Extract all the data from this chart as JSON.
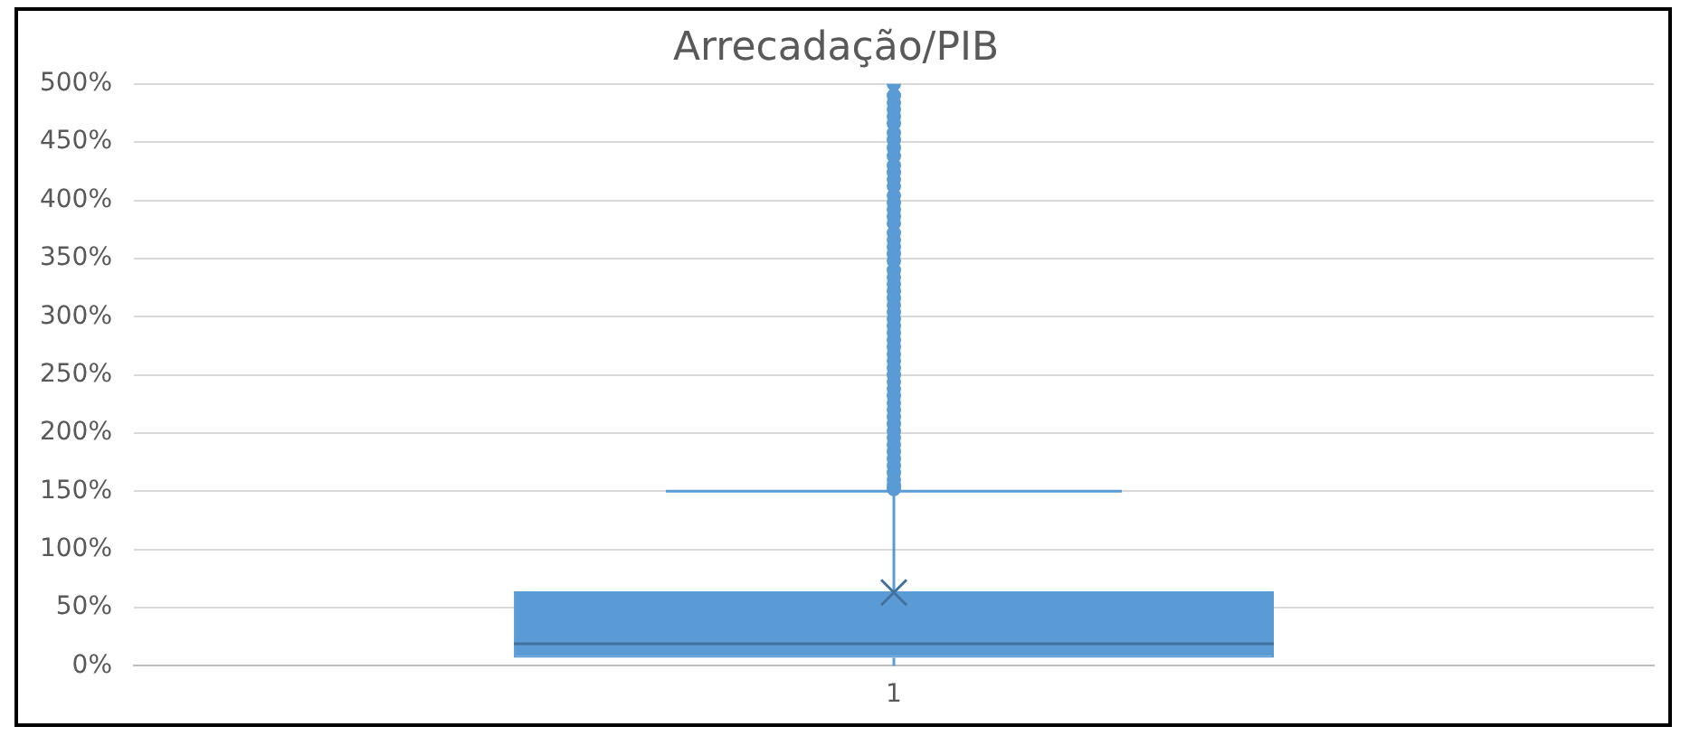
{
  "chart_data": {
    "type": "box",
    "title": "Arrecadação/PIB",
    "categories": [
      "1"
    ],
    "boxes": [
      {
        "low": 0,
        "q1": 7,
        "median": 19,
        "q3": 64,
        "high": 150,
        "mean": 63,
        "outliers": [
          500,
          490,
          484,
          478,
          472,
          466,
          458,
          452,
          445,
          438,
          430,
          424,
          418,
          412,
          404,
          398,
          392,
          386,
          380,
          372,
          366,
          360,
          354,
          348,
          340,
          334,
          328,
          322,
          316,
          310,
          304,
          298,
          292,
          286,
          280,
          274,
          268,
          262,
          256,
          250,
          244,
          238,
          232,
          226,
          220,
          214,
          208,
          202,
          196,
          190,
          184,
          178,
          172,
          166,
          160,
          155,
          152
        ]
      }
    ],
    "color": "#5b9bd5",
    "ylim": [
      0,
      500
    ],
    "yticks": [
      {
        "value": 0,
        "label": "0%"
      },
      {
        "value": 50,
        "label": "50%"
      },
      {
        "value": 100,
        "label": "100%"
      },
      {
        "value": 150,
        "label": "150%"
      },
      {
        "value": 200,
        "label": "200%"
      },
      {
        "value": 250,
        "label": "250%"
      },
      {
        "value": 300,
        "label": "300%"
      },
      {
        "value": 350,
        "label": "350%"
      },
      {
        "value": 400,
        "label": "400%"
      },
      {
        "value": 450,
        "label": "450%"
      },
      {
        "value": 500,
        "label": "500%"
      }
    ],
    "grid": "y",
    "legend": false,
    "marker": "circle"
  }
}
